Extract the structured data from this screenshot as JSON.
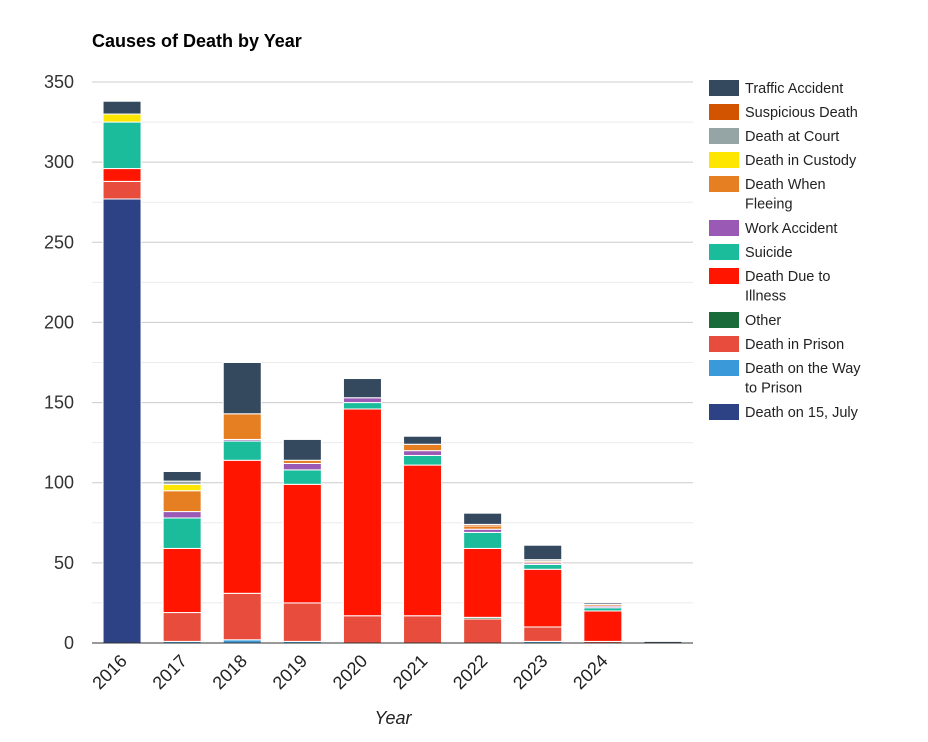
{
  "chart_data": {
    "type": "bar",
    "stacked": true,
    "title": "Causes of Death by Year",
    "xlabel": "Year",
    "ylabel": "",
    "ylim": [
      0,
      350
    ],
    "yticks": [
      0,
      50,
      100,
      150,
      200,
      250,
      300,
      350
    ],
    "grid": true,
    "legend_position": "right",
    "categories": [
      "2016",
      "2017",
      "2018",
      "2019",
      "2020",
      "2021",
      "2022",
      "2023",
      "2024",
      ""
    ],
    "series": [
      {
        "name": "Death on 15, July",
        "color": "#2c4284",
        "values": [
          277,
          0,
          0,
          0,
          0,
          0,
          0,
          0,
          0,
          0
        ]
      },
      {
        "name": "Death on the Way to Prison",
        "color": "#3a9ad9",
        "values": [
          0,
          1,
          2,
          1,
          0,
          0,
          0,
          1,
          0,
          0
        ]
      },
      {
        "name": "Death in Prison",
        "color": "#e74c3c",
        "values": [
          11,
          18,
          29,
          24,
          17,
          17,
          15,
          9,
          1,
          0
        ]
      },
      {
        "name": "Other",
        "color": "#1a6b3a",
        "values": [
          0,
          0,
          0,
          0,
          0,
          0,
          1,
          0,
          0,
          0
        ]
      },
      {
        "name": "Death Due to Illness",
        "color": "#ff1500",
        "values": [
          8,
          40,
          83,
          74,
          129,
          94,
          43,
          36,
          19,
          0
        ]
      },
      {
        "name": "Suicide",
        "color": "#1abc9c",
        "values": [
          29,
          19,
          12,
          9,
          4,
          6,
          10,
          3,
          2,
          0
        ]
      },
      {
        "name": "Work Accident",
        "color": "#9b59b6",
        "values": [
          0,
          4,
          1,
          4,
          3,
          3,
          2,
          1,
          1,
          0
        ]
      },
      {
        "name": "Death When Fleeing",
        "color": "#e67e22",
        "values": [
          0,
          13,
          16,
          2,
          0,
          4,
          2,
          1,
          1,
          0
        ]
      },
      {
        "name": "Death in Custody",
        "color": "#ffe600",
        "values": [
          5,
          4,
          0,
          0,
          0,
          0,
          0,
          0,
          0,
          0
        ]
      },
      {
        "name": "Death at Court",
        "color": "#95a5a6",
        "values": [
          0,
          2,
          0,
          0,
          0,
          0,
          0,
          1,
          0,
          0
        ]
      },
      {
        "name": "Suspicious Death",
        "color": "#d35400",
        "values": [
          0,
          0,
          0,
          0,
          0,
          0,
          1,
          0,
          0,
          0
        ]
      },
      {
        "name": "Traffic Accident",
        "color": "#34495e",
        "values": [
          8,
          6,
          32,
          13,
          12,
          5,
          7,
          9,
          1,
          1
        ]
      }
    ],
    "legend_order": [
      "Traffic Accident",
      "Suspicious Death",
      "Death at Court",
      "Death in Custody",
      "Death When Fleeing",
      "Work Accident",
      "Suicide",
      "Death Due to Illness",
      "Other",
      "Death in Prison",
      "Death on the Way to Prison",
      "Death on 15, July"
    ]
  }
}
